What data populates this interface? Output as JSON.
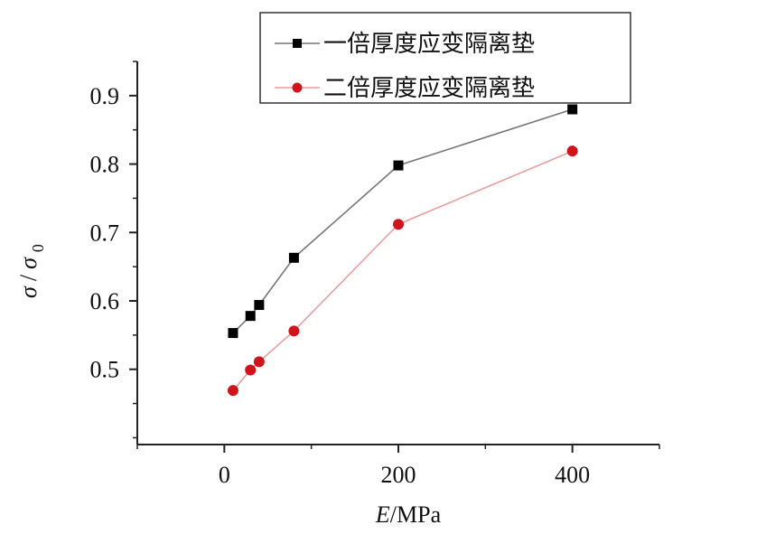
{
  "chart_data": {
    "type": "line",
    "xlabel_italic": "E",
    "xlabel_rest": "/MPa",
    "ylabel": "σ / σ₀",
    "ylabel_parts": {
      "sigma": "σ",
      "slash": "/",
      "sigma0": "σ",
      "sub": "0"
    },
    "xlim": [
      -100,
      500
    ],
    "ylim": [
      0.39,
      0.95
    ],
    "xtick_values": [
      0,
      200,
      400
    ],
    "xtick_labels": [
      "0",
      "200",
      "400"
    ],
    "ytick_values": [
      0.5,
      0.6,
      0.7,
      0.8,
      0.9
    ],
    "ytick_labels": [
      "0.5",
      "0.6",
      "0.7",
      "0.8",
      "0.9"
    ],
    "grid": false,
    "legend_position": "top-right",
    "series": [
      {
        "name": "一倍厚度应变隔离垫",
        "color": "#777777",
        "marker_color": "#000000",
        "marker": "square",
        "x": [
          10,
          30,
          40,
          80,
          200,
          400
        ],
        "y": [
          0.553,
          0.578,
          0.594,
          0.663,
          0.798,
          0.88
        ]
      },
      {
        "name": "二倍厚度应变隔离垫",
        "color": "#e8a0a0",
        "marker_color": "#d0141c",
        "marker": "circle",
        "x": [
          10,
          30,
          40,
          80,
          200,
          400
        ],
        "y": [
          0.469,
          0.499,
          0.511,
          0.556,
          0.712,
          0.819
        ]
      }
    ]
  }
}
